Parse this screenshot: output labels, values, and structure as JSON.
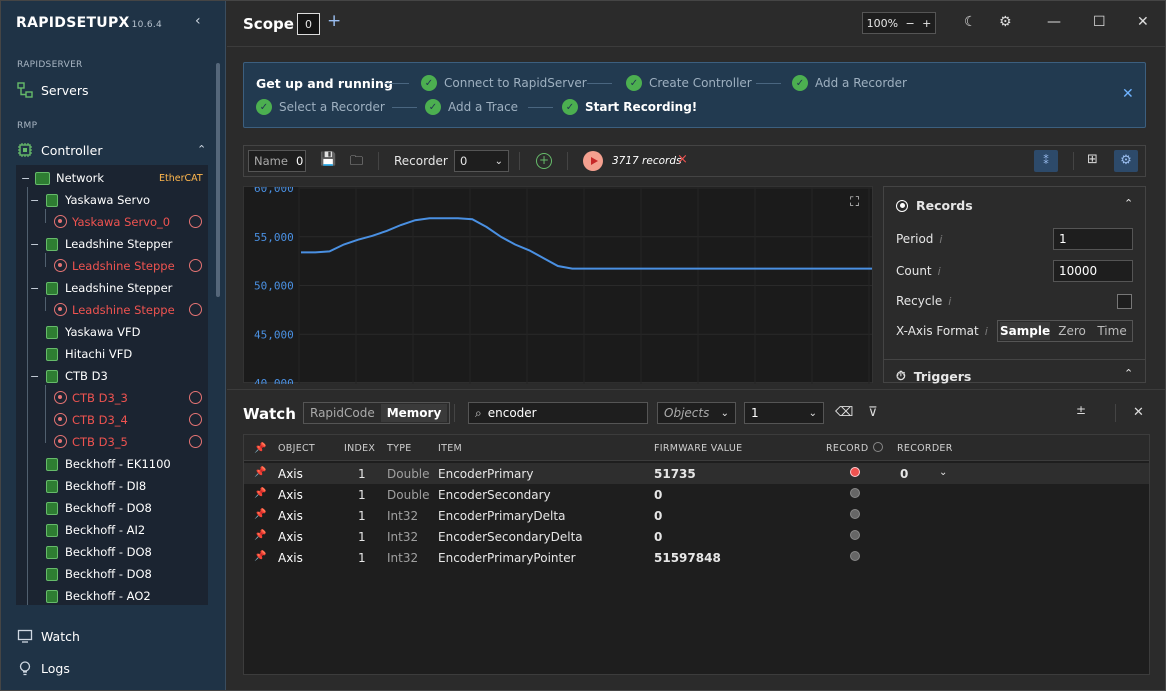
{
  "sidebar": {
    "brand": "RAPIDSETUPX",
    "version": "10.6.4",
    "section_server": "RAPIDSERVER",
    "servers": "Servers",
    "section_rmp": "RMP",
    "controller": "Controller",
    "network": "Network",
    "network_badge": "EtherCAT",
    "tree": [
      {
        "label": "Yaskawa Servo",
        "kind": "node"
      },
      {
        "label": "Yaskawa Servo_0",
        "kind": "axis"
      },
      {
        "label": "Leadshine Stepper",
        "kind": "node"
      },
      {
        "label": "Leadshine Steppe",
        "kind": "axis"
      },
      {
        "label": "Leadshine Stepper",
        "kind": "node"
      },
      {
        "label": "Leadshine Steppe",
        "kind": "axis"
      },
      {
        "label": "Yaskawa VFD",
        "kind": "node"
      },
      {
        "label": "Hitachi VFD",
        "kind": "node"
      },
      {
        "label": "CTB D3",
        "kind": "node"
      },
      {
        "label": "CTB D3_3",
        "kind": "axis"
      },
      {
        "label": "CTB D3_4",
        "kind": "axis"
      },
      {
        "label": "CTB D3_5",
        "kind": "axis"
      },
      {
        "label": "Beckhoff - EK1100",
        "kind": "node"
      },
      {
        "label": "Beckhoff - DI8",
        "kind": "node"
      },
      {
        "label": "Beckhoff - DO8",
        "kind": "node"
      },
      {
        "label": "Beckhoff - AI2",
        "kind": "node"
      },
      {
        "label": "Beckhoff - DO8",
        "kind": "node"
      },
      {
        "label": "Beckhoff - DO8",
        "kind": "node"
      },
      {
        "label": "Beckhoff - AO2",
        "kind": "node"
      }
    ],
    "watch": "Watch",
    "logs": "Logs"
  },
  "topbar": {
    "title": "Scope",
    "scope_index": "0",
    "zoom": "100%"
  },
  "banner": {
    "heading": "Get up and running",
    "steps": [
      "Connect to RapidServer",
      "Create Controller",
      "Add a Recorder",
      "Select a Recorder",
      "Add a Trace",
      "Start Recording!"
    ]
  },
  "toolbar": {
    "name_label": "Name",
    "name_value": "0",
    "recorder_label": "Recorder",
    "recorder_value": "0",
    "records": "3717 records"
  },
  "chart_data": {
    "type": "line",
    "yticks": [
      "60,000",
      "55,000",
      "50,000",
      "45,000",
      "40,000"
    ],
    "ylim": [
      40000,
      60000
    ],
    "series": [
      {
        "values": [
          53400,
          53400,
          53500,
          54200,
          54700,
          55100,
          55600,
          56200,
          56700,
          56900,
          56900,
          56900,
          56800,
          56000,
          55000,
          54200,
          53600,
          52800,
          52000,
          51735,
          51735,
          51735,
          51735,
          51735,
          51735,
          51735,
          51735,
          51735,
          51735,
          51735,
          51735,
          51735,
          51735,
          51735,
          51735,
          51735,
          51735,
          51735,
          51735,
          51735,
          51735
        ]
      }
    ],
    "colors": {
      "line": "#4a90e2"
    }
  },
  "records_panel": {
    "title": "Records",
    "period_label": "Period",
    "period_value": "1",
    "count_label": "Count",
    "count_value": "10000",
    "recycle_label": "Recycle",
    "xaxis_label": "X-Axis Format",
    "xaxis_options": [
      "Sample",
      "Zero",
      "Time"
    ],
    "triggers": "Triggers"
  },
  "watch": {
    "title": "Watch",
    "tabs": [
      "RapidCode",
      "Memory"
    ],
    "search_value": "encoder",
    "objects_placeholder": "Objects",
    "index_value": "1",
    "columns": [
      "OBJECT",
      "INDEX",
      "TYPE",
      "ITEM",
      "FIRMWARE VALUE",
      "RECORD",
      "RECORDER"
    ],
    "rows": [
      {
        "object": "Axis",
        "index": "1",
        "type": "Double",
        "item": "EncoderPrimary",
        "value": "51735",
        "recorder": "0"
      },
      {
        "object": "Axis",
        "index": "1",
        "type": "Double",
        "item": "EncoderSecondary",
        "value": "0",
        "recorder": ""
      },
      {
        "object": "Axis",
        "index": "1",
        "type": "Int32",
        "item": "EncoderPrimaryDelta",
        "value": "0",
        "recorder": ""
      },
      {
        "object": "Axis",
        "index": "1",
        "type": "Int32",
        "item": "EncoderSecondaryDelta",
        "value": "0",
        "recorder": ""
      },
      {
        "object": "Axis",
        "index": "1",
        "type": "Int32",
        "item": "EncoderPrimaryPointer",
        "value": "51597848",
        "recorder": ""
      }
    ]
  }
}
